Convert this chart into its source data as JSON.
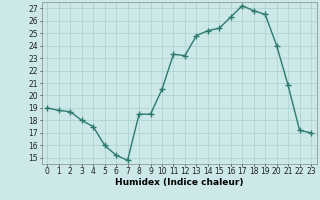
{
  "x": [
    0,
    1,
    2,
    3,
    4,
    5,
    6,
    7,
    8,
    9,
    10,
    11,
    12,
    13,
    14,
    15,
    16,
    17,
    18,
    19,
    20,
    21,
    22,
    23
  ],
  "y": [
    19.0,
    18.8,
    18.7,
    18.0,
    17.5,
    16.0,
    15.2,
    14.8,
    18.5,
    18.5,
    20.5,
    23.3,
    23.2,
    24.8,
    25.2,
    25.4,
    26.3,
    27.2,
    26.8,
    26.5,
    24.0,
    20.8,
    17.2,
    17.0
  ],
  "line_color": "#2d7a6e",
  "marker": "+",
  "marker_size": 4,
  "marker_lw": 1.0,
  "line_width": 1.0,
  "bg_color": "#cce8e8",
  "grid_color": "#aacfcf",
  "xlabel": "Humidex (Indice chaleur)",
  "ylim": [
    14.5,
    27.5
  ],
  "xlim": [
    -0.5,
    23.5
  ],
  "yticks": [
    15,
    16,
    17,
    18,
    19,
    20,
    21,
    22,
    23,
    24,
    25,
    26,
    27
  ],
  "xticks": [
    0,
    1,
    2,
    3,
    4,
    5,
    6,
    7,
    8,
    9,
    10,
    11,
    12,
    13,
    14,
    15,
    16,
    17,
    18,
    19,
    20,
    21,
    22,
    23
  ],
  "tick_fontsize": 5.5,
  "label_fontsize": 6.5
}
